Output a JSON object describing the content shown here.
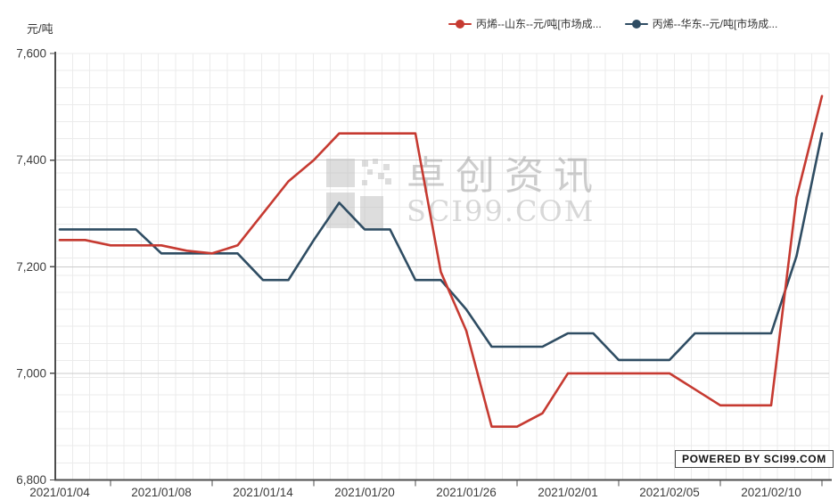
{
  "footer": {
    "powered_by": "POWERED BY SCI99.COM"
  },
  "watermark": {
    "brand_text": "卓创资讯",
    "domain_text": "SCI99.COM"
  },
  "chart_data": {
    "type": "line",
    "title": "",
    "unit_label": "元/吨",
    "grid": true,
    "legend_position": "top-right",
    "x_axis": {
      "categories": [
        "2021/01/04",
        "2021/01/05",
        "2021/01/06",
        "2021/01/07",
        "2021/01/08",
        "2021/01/11",
        "2021/01/12",
        "2021/01/13",
        "2021/01/14",
        "2021/01/15",
        "2021/01/18",
        "2021/01/19",
        "2021/01/20",
        "2021/01/21",
        "2021/01/22",
        "2021/01/25",
        "2021/01/26",
        "2021/01/27",
        "2021/01/28",
        "2021/01/29",
        "2021/02/01",
        "2021/02/02",
        "2021/02/03",
        "2021/02/04",
        "2021/02/05",
        "2021/02/07",
        "2021/02/08",
        "2021/02/09",
        "2021/02/10",
        "2021/02/18",
        "2021/02/19"
      ],
      "label_indices": [
        0,
        4,
        8,
        12,
        16,
        20,
        24,
        28
      ]
    },
    "y_axis": {
      "min": 6800,
      "max": 7600,
      "ticks": [
        {
          "value": 6800,
          "label": "6,800"
        },
        {
          "value": 7000,
          "label": "7,000"
        },
        {
          "value": 7200,
          "label": "7,200"
        },
        {
          "value": 7400,
          "label": "7,400"
        },
        {
          "value": 7600,
          "label": "7,600"
        }
      ]
    },
    "series": [
      {
        "name": "丙烯--山东--元/吨[市场成...",
        "region": "山东",
        "color": "#c63a31",
        "values": [
          7250,
          7250,
          7240,
          7240,
          7240,
          7230,
          7225,
          7240,
          7300,
          7360,
          7400,
          7450,
          7450,
          7450,
          7450,
          7190,
          7080,
          6900,
          6900,
          6925,
          7000,
          7000,
          7000,
          7000,
          7000,
          6970,
          6940,
          6940,
          6940,
          7330,
          7520
        ]
      },
      {
        "name": "丙烯--华东--元/吨[市场成...",
        "region": "华东",
        "color": "#2f4d63",
        "values": [
          7270,
          7270,
          7270,
          7270,
          7225,
          7225,
          7225,
          7225,
          7175,
          7175,
          7250,
          7320,
          7270,
          7270,
          7175,
          7175,
          7120,
          7050,
          7050,
          7050,
          7075,
          7075,
          7025,
          7025,
          7025,
          7075,
          7075,
          7075,
          7075,
          7220,
          7450
        ]
      }
    ]
  }
}
